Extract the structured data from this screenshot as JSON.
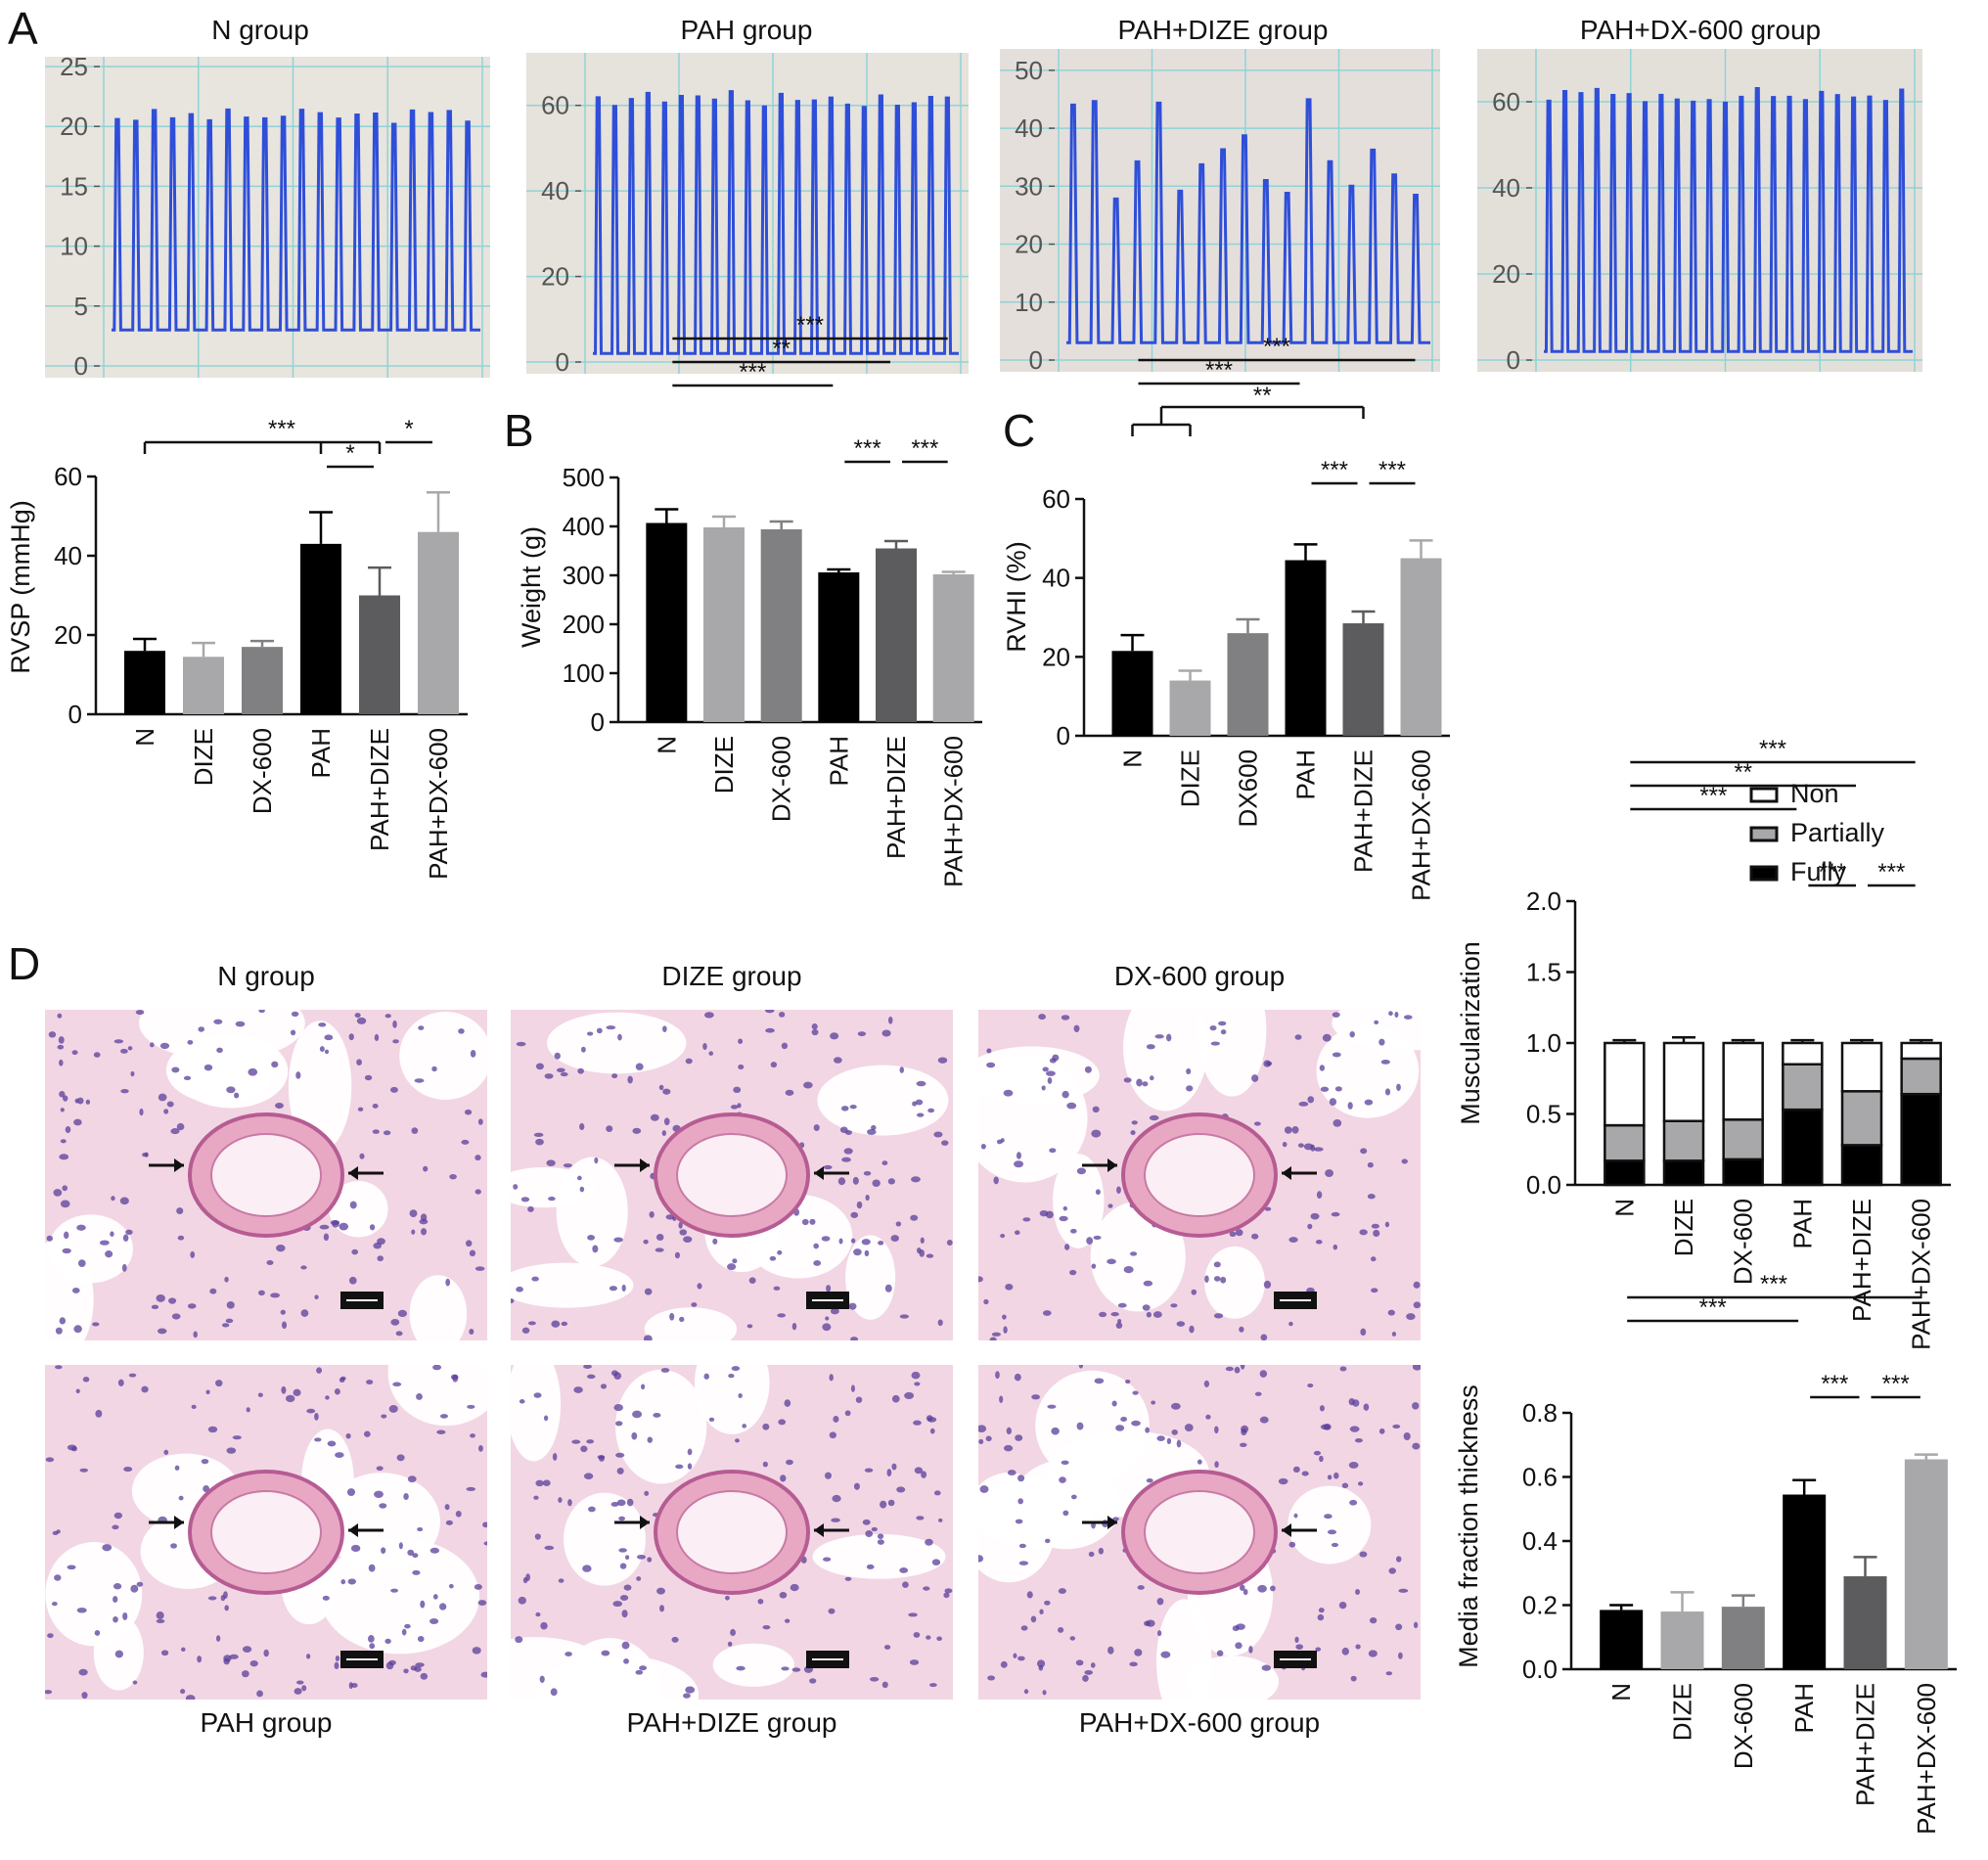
{
  "panels": {
    "A": "A",
    "B": "B",
    "C": "C",
    "D": "D"
  },
  "traces": [
    {
      "title": "N group",
      "ticks": [
        "25",
        "20",
        "15",
        "10",
        "5",
        "0"
      ],
      "ymax": 25,
      "peak": 21,
      "trough": 3,
      "beats": 20,
      "bg": "#e8e4de",
      "line": "#2f4fd8"
    },
    {
      "title": "PAH group",
      "ticks": [
        "60",
        "40",
        "20",
        "0"
      ],
      "ymax": 70,
      "peak": 62,
      "trough": 2,
      "beats": 22,
      "bg": "#e6e2dc",
      "line": "#2f4fd8"
    },
    {
      "title": "PAH+DIZE group",
      "ticks": [
        "50",
        "40",
        "30",
        "20",
        "10",
        "0"
      ],
      "ymax": 52,
      "peak": 44,
      "trough": 3,
      "beats": 17,
      "bg": "#e4dfdb",
      "line": "#2f4fd8"
    },
    {
      "title": "PAH+DX-600 group",
      "ticks": [
        "60",
        "40",
        "20",
        "0"
      ],
      "ymax": 70,
      "peak": 62,
      "trough": 2,
      "beats": 23,
      "bg": "#e3e0da",
      "line": "#2f4fd8"
    }
  ],
  "histology": {
    "top_titles": [
      "N group",
      "DIZE group",
      "DX-600 group"
    ],
    "bottom_titles": [
      "PAH group",
      "PAH+DIZE group",
      "PAH+DX-600 group"
    ],
    "tissue_color": "#f2d6e4",
    "nuclei_color": "#5a3d9a"
  },
  "chart_data": [
    {
      "id": "rvsp",
      "type": "bar",
      "categories": [
        "N",
        "DIZE",
        "DX-600",
        "PAH",
        "PAH+DIZE",
        "PAH+DX-600"
      ],
      "values": [
        16,
        14.5,
        17,
        43,
        30,
        46
      ],
      "errors": [
        3,
        3.5,
        1.5,
        8,
        7,
        10
      ],
      "colors": [
        "#000000",
        "#a8a8aa",
        "#808082",
        "#000000",
        "#5c5c5e",
        "#a8a8aa"
      ],
      "ylabel": "RVSP (mmHg)",
      "ylim": [
        0,
        60
      ],
      "yticks": [
        "0",
        "20",
        "40",
        "60"
      ],
      "sig": [
        {
          "label": "***",
          "from": 0,
          "to": [
            3,
            4
          ]
        },
        {
          "label": "*",
          "from": 3,
          "to": 4
        },
        {
          "label": "*",
          "from": 4,
          "to": 5
        }
      ]
    },
    {
      "id": "weight",
      "type": "bar",
      "categories": [
        "N",
        "DIZE",
        "DX-600",
        "PAH",
        "PAH+DIZE",
        "PAH+DX-600"
      ],
      "values": [
        407,
        398,
        394,
        306,
        355,
        302
      ],
      "errors": [
        28,
        22,
        16,
        6,
        15,
        5
      ],
      "colors": [
        "#000000",
        "#a8a8aa",
        "#808082",
        "#000000",
        "#5c5c5e",
        "#a8a8aa"
      ],
      "ylabel": "Weight (g)",
      "ylim": [
        0,
        500
      ],
      "yticks": [
        "0",
        "100",
        "200",
        "300",
        "400",
        "500"
      ],
      "sig": [
        {
          "label": "***",
          "from": 0,
          "to": 5
        },
        {
          "label": "**",
          "from": 0,
          "to": 4
        },
        {
          "label": "***",
          "from": 0,
          "to": 3
        },
        {
          "label": "***",
          "from": 3,
          "to": 4
        },
        {
          "label": "***",
          "from": 4,
          "to": 5
        }
      ]
    },
    {
      "id": "rvhi",
      "type": "bar",
      "categories": [
        "N",
        "DIZE",
        "DX600",
        "PAH",
        "PAH+DIZE",
        "PAH+DX-600"
      ],
      "values": [
        21.5,
        14,
        26,
        44.5,
        28.5,
        45
      ],
      "errors": [
        4,
        2.5,
        3.5,
        4,
        3,
        4.5
      ],
      "colors": [
        "#000000",
        "#a8a8aa",
        "#808082",
        "#000000",
        "#5c5c5e",
        "#a8a8aa"
      ],
      "ylabel": "RVHI (%)",
      "ylim": [
        0,
        60
      ],
      "yticks": [
        "0",
        "20",
        "40",
        "60"
      ],
      "sig": [
        {
          "label": "***",
          "from": 0,
          "to": 5
        },
        {
          "label": "***",
          "from": 0,
          "to": 3
        },
        {
          "label": "**",
          "from": [
            0,
            1
          ],
          "to": 4
        },
        {
          "label": "***",
          "from": 3,
          "to": 4
        },
        {
          "label": "***",
          "from": 4,
          "to": 5
        }
      ]
    },
    {
      "id": "muscularization",
      "type": "bar",
      "stacked": true,
      "categories": [
        "N",
        "DIZE",
        "DX-600",
        "PAH",
        "PAH+DIZE",
        "PAH+DX-600"
      ],
      "series": [
        {
          "name": "Fully",
          "values": [
            0.17,
            0.17,
            0.18,
            0.53,
            0.28,
            0.64
          ],
          "errors": [
            0.03,
            0.05,
            0.04,
            0.05,
            0.06,
            0.02
          ],
          "color": "#000000"
        },
        {
          "name": "Partially",
          "values": [
            0.25,
            0.28,
            0.28,
            0.32,
            0.38,
            0.25
          ],
          "errors": [
            0.02,
            0.01,
            0.01,
            0.04,
            0.04,
            0.01
          ],
          "color": "#a8a8aa"
        },
        {
          "name": "Non",
          "values": [
            0.58,
            0.55,
            0.54,
            0.15,
            0.34,
            0.11
          ],
          "errors": [
            0.02,
            0.04,
            0.02,
            0.02,
            0.02,
            0.02
          ],
          "color": "#ffffff"
        }
      ],
      "legend_order": [
        "Non",
        "Partially",
        "Fully"
      ],
      "ylabel": "Muscularization",
      "ylim": [
        0,
        2.0
      ],
      "yticks": [
        "0.0",
        "0.5",
        "1.0",
        "1.5",
        "2.0"
      ],
      "sig": [
        {
          "label": "***",
          "from": 0,
          "to": 5
        },
        {
          "label": "**",
          "from": 0,
          "to": 4
        },
        {
          "label": "***",
          "from": 0,
          "to": 3
        },
        {
          "label": "***",
          "from": 3,
          "to": 4
        },
        {
          "label": "***",
          "from": 4,
          "to": 5
        }
      ]
    },
    {
      "id": "media",
      "type": "bar",
      "categories": [
        "N",
        "DIZE",
        "DX-600",
        "PAH",
        "PAH+DIZE",
        "PAH+DX-600"
      ],
      "values": [
        0.185,
        0.18,
        0.195,
        0.545,
        0.29,
        0.655
      ],
      "errors": [
        0.015,
        0.06,
        0.035,
        0.045,
        0.06,
        0.015
      ],
      "colors": [
        "#000000",
        "#a8a8aa",
        "#808082",
        "#000000",
        "#5c5c5e",
        "#a8a8aa"
      ],
      "ylabel": "Media fraction thickness",
      "ylim": [
        0,
        0.8
      ],
      "yticks": [
        "0.0",
        "0.2",
        "0.4",
        "0.6",
        "0.8"
      ],
      "sig": [
        {
          "label": "***",
          "from": 0,
          "to": 5
        },
        {
          "label": "***",
          "from": 0,
          "to": 3
        },
        {
          "label": "***",
          "from": 3,
          "to": 4
        },
        {
          "label": "***",
          "from": 4,
          "to": 5
        }
      ]
    }
  ]
}
